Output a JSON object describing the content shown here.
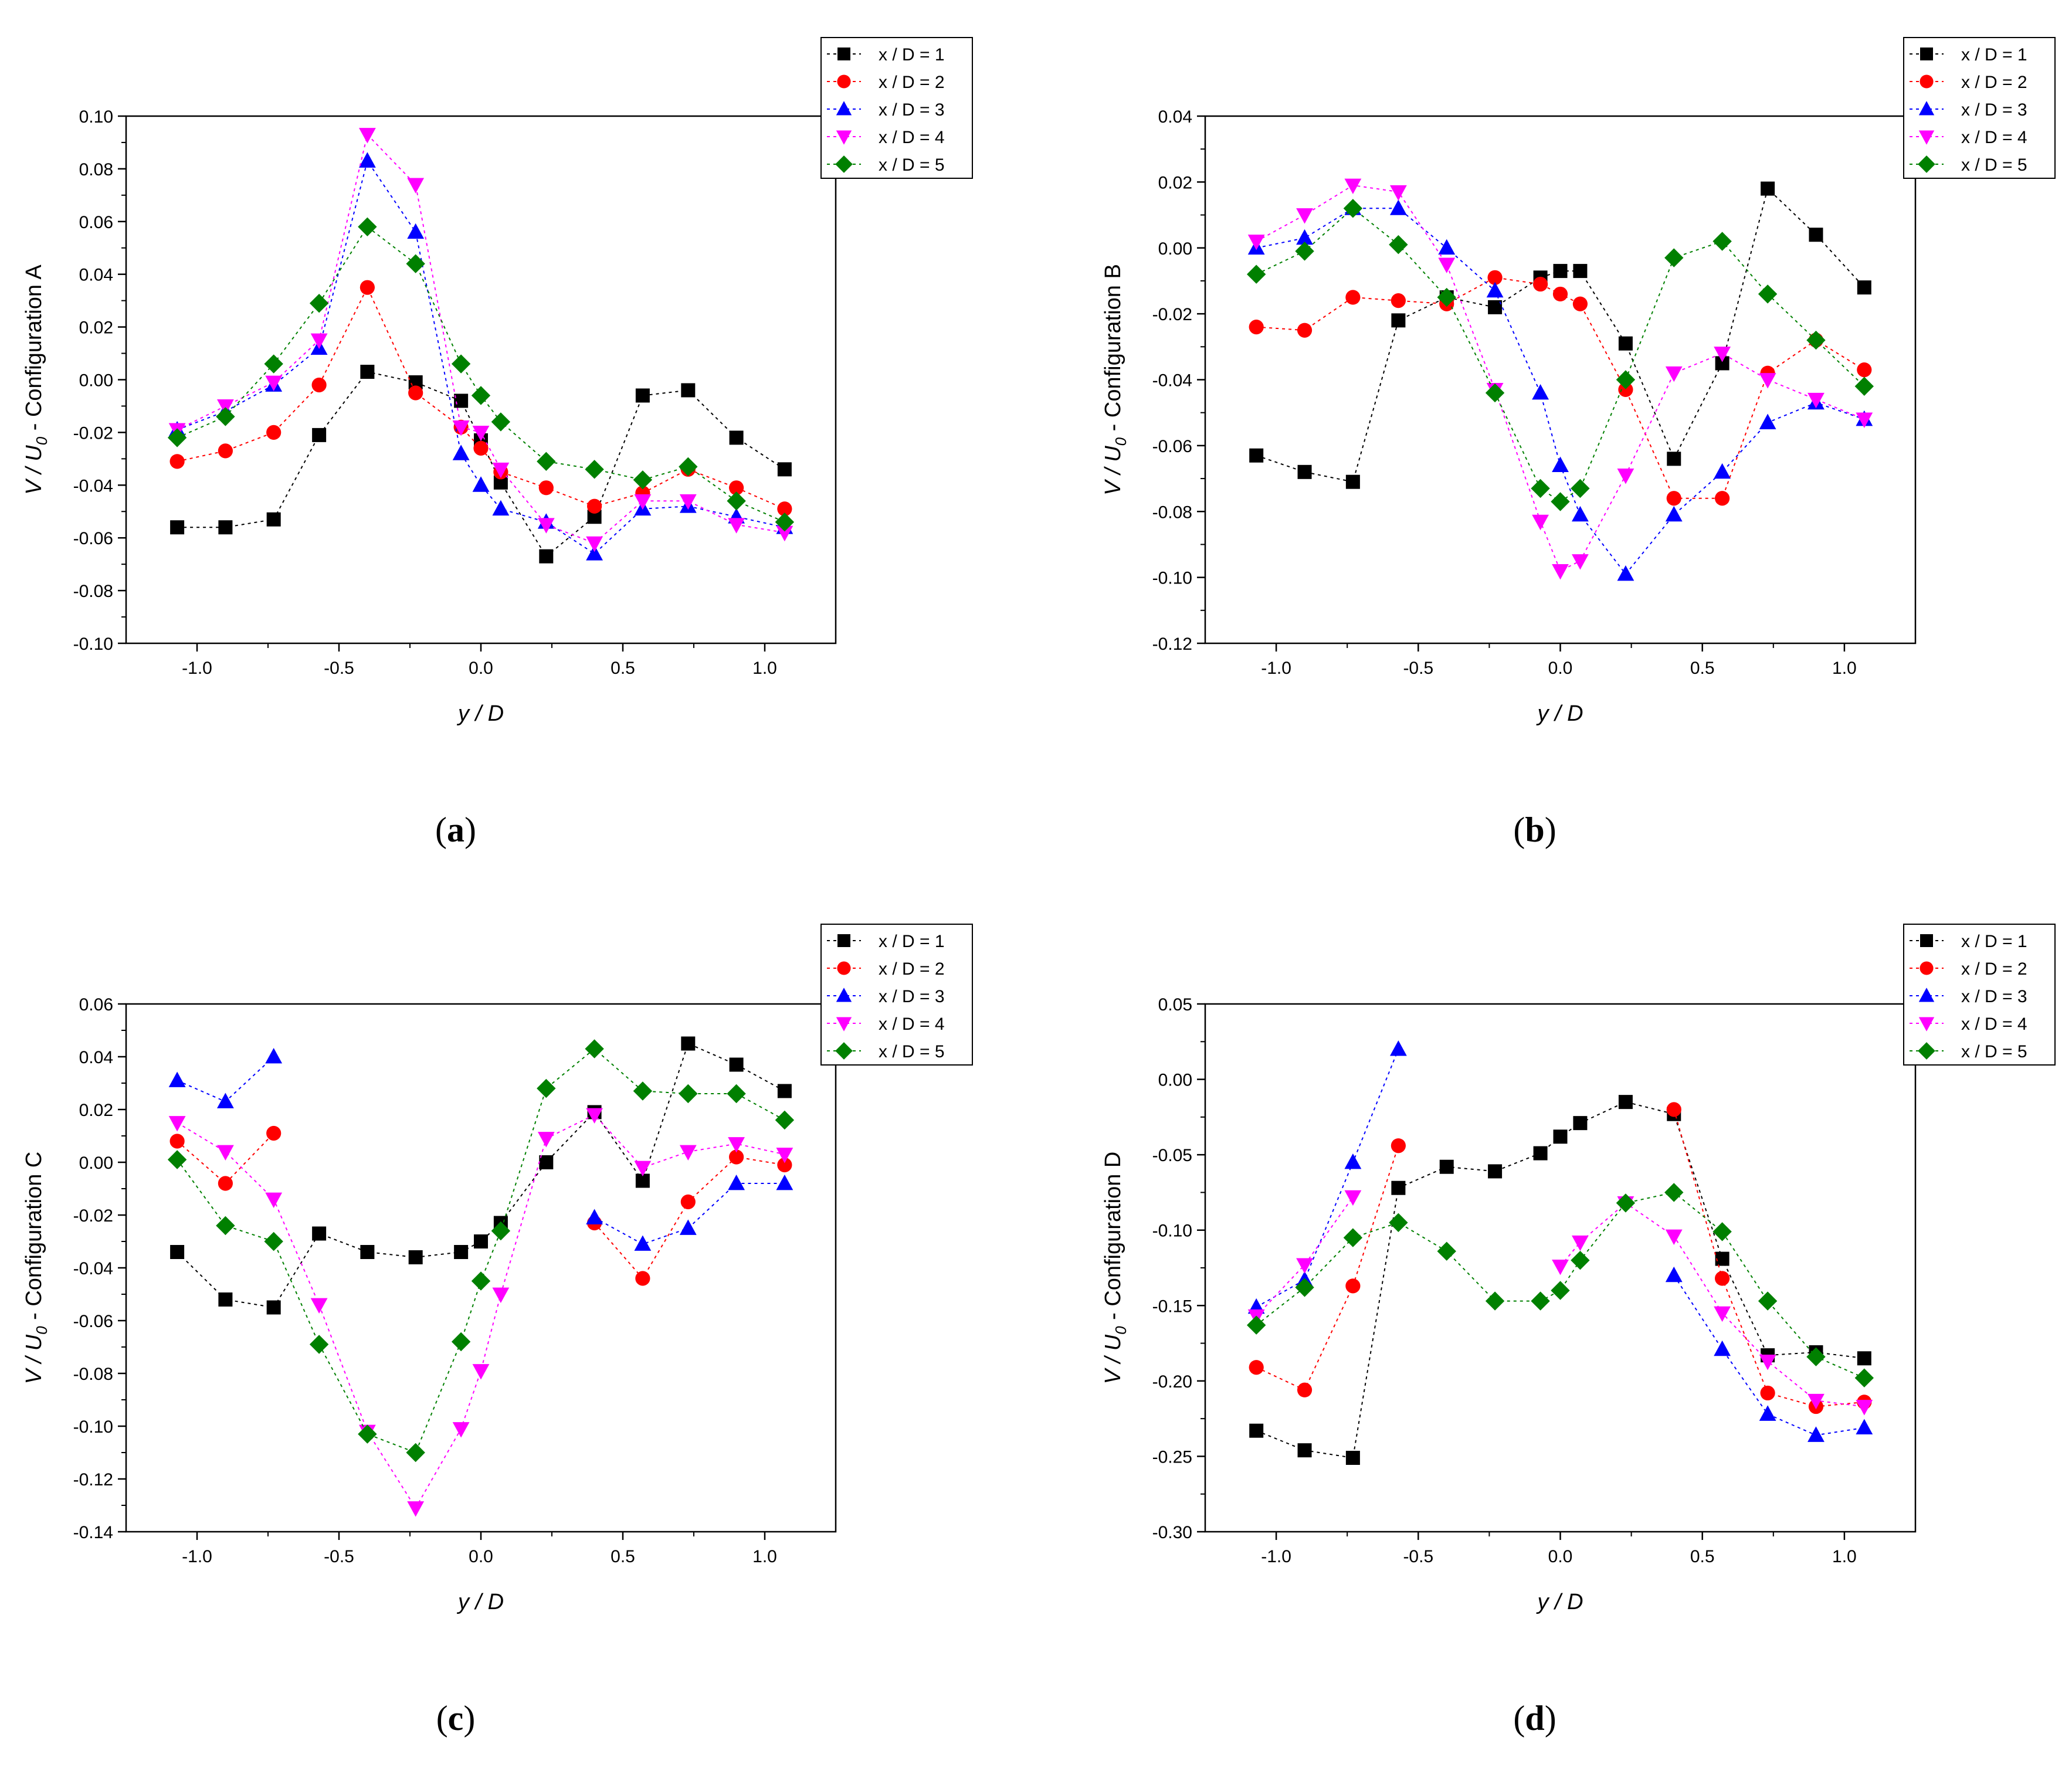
{
  "chart_data": [
    {
      "type": "scatter",
      "panel_label_letter": "a",
      "xlabel": "y / D",
      "ylabel": "V / U0 - Configuration A",
      "ylabel_main": "V / U",
      "ylabel_sub": "0",
      "ylabel_tail": " - Configuration A",
      "xlim": [
        -1.25,
        1.25
      ],
      "ylim": [
        -0.1,
        0.1
      ],
      "xticks": [
        "-1.0",
        "-0.5",
        "0.0",
        "0.5",
        "1.0"
      ],
      "yticks": [
        "-0.10",
        "-0.08",
        "-0.06",
        "-0.04",
        "-0.02",
        "0.00",
        "0.02",
        "0.04",
        "0.06",
        "0.08",
        "0.10"
      ],
      "legend_position": "top-right",
      "x": [
        -1.07,
        -0.9,
        -0.73,
        -0.57,
        -0.4,
        -0.23,
        -0.07,
        0.0,
        0.07,
        0.23,
        0.4,
        0.57,
        0.73,
        0.9,
        1.07
      ],
      "series": [
        {
          "name": "x / D = 1",
          "values": [
            -0.056,
            -0.056,
            -0.053,
            -0.021,
            0.003,
            -0.001,
            -0.008,
            -0.023,
            -0.039,
            -0.067,
            -0.052,
            -0.006,
            -0.004,
            -0.022,
            -0.034
          ]
        },
        {
          "name": "x / D = 2",
          "values": [
            -0.031,
            -0.027,
            -0.02,
            -0.002,
            0.035,
            -0.005,
            -0.018,
            -0.026,
            -0.035,
            -0.041,
            -0.048,
            -0.043,
            -0.034,
            -0.041,
            -0.049
          ]
        },
        {
          "name": "x / D = 3",
          "values": [
            -0.019,
            -0.012,
            -0.002,
            0.012,
            0.083,
            0.056,
            -0.028,
            -0.04,
            -0.049,
            -0.054,
            -0.066,
            -0.049,
            -0.048,
            -0.052,
            -0.056
          ]
        },
        {
          "name": "x / D = 4",
          "values": [
            -0.019,
            -0.01,
            -0.001,
            0.015,
            0.093,
            0.074,
            -0.018,
            -0.02,
            -0.034,
            -0.055,
            -0.062,
            -0.046,
            -0.046,
            -0.055,
            -0.058
          ]
        },
        {
          "name": "x / D = 5",
          "values": [
            -0.022,
            -0.014,
            0.006,
            0.029,
            0.058,
            0.044,
            0.006,
            -0.006,
            -0.016,
            -0.031,
            -0.034,
            -0.038,
            -0.033,
            -0.046,
            -0.054
          ]
        }
      ]
    },
    {
      "type": "scatter",
      "panel_label_letter": "b",
      "xlabel": "y / D",
      "ylabel": "V / U0 - Configuration B",
      "ylabel_main": "V / U",
      "ylabel_sub": "0",
      "ylabel_tail": " - Configuration B",
      "xlim": [
        -1.25,
        1.25
      ],
      "ylim": [
        -0.12,
        0.04
      ],
      "xticks": [
        "-1.0",
        "-0.5",
        "0.0",
        "0.5",
        "1.0"
      ],
      "yticks": [
        "-0.12",
        "-0.10",
        "-0.08",
        "-0.06",
        "-0.04",
        "-0.02",
        "0.00",
        "0.02",
        "0.04"
      ],
      "legend_position": "top-right",
      "x": [
        -1.07,
        -0.9,
        -0.73,
        -0.57,
        -0.4,
        -0.23,
        -0.07,
        0.0,
        0.07,
        0.23,
        0.4,
        0.57,
        0.73,
        0.9,
        1.07
      ],
      "series": [
        {
          "name": "x / D = 1",
          "values": [
            -0.063,
            -0.068,
            -0.071,
            -0.022,
            -0.015,
            -0.018,
            -0.009,
            -0.007,
            -0.007,
            -0.029,
            -0.064,
            -0.035,
            0.018,
            0.004,
            -0.012
          ]
        },
        {
          "name": "x / D = 2",
          "values": [
            -0.024,
            -0.025,
            -0.015,
            -0.016,
            -0.017,
            -0.009,
            -0.011,
            -0.014,
            -0.017,
            -0.043,
            -0.076,
            -0.076,
            -0.038,
            -0.028,
            -0.037
          ]
        },
        {
          "name": "x / D = 3",
          "values": [
            0.0,
            0.003,
            0.012,
            0.012,
            0.0,
            -0.013,
            -0.044,
            -0.066,
            -0.081,
            -0.099,
            -0.081,
            -0.068,
            -0.053,
            -0.047,
            -0.052
          ]
        },
        {
          "name": "x / D = 4",
          "values": [
            0.002,
            0.01,
            0.019,
            0.017,
            -0.005,
            -0.043,
            -0.083,
            -0.098,
            -0.095,
            -0.069,
            -0.038,
            -0.032,
            -0.04,
            -0.046,
            -0.052
          ]
        },
        {
          "name": "x / D = 5",
          "values": [
            -0.008,
            -0.001,
            0.012,
            0.001,
            -0.015,
            -0.044,
            -0.073,
            -0.077,
            -0.073,
            -0.04,
            -0.003,
            0.002,
            -0.014,
            -0.028,
            -0.042
          ]
        }
      ]
    },
    {
      "type": "scatter",
      "panel_label_letter": "c",
      "xlabel": "y / D",
      "ylabel": "V / U0 - Configuration C",
      "ylabel_main": "V / U",
      "ylabel_sub": "0",
      "ylabel_tail": " - Configuration C",
      "xlim": [
        -1.25,
        1.25
      ],
      "ylim": [
        -0.14,
        0.06
      ],
      "xticks": [
        "-1.0",
        "-0.5",
        "0.0",
        "0.5",
        "1.0"
      ],
      "yticks": [
        "-0.14",
        "-0.12",
        "-0.10",
        "-0.08",
        "-0.06",
        "-0.04",
        "-0.02",
        "0.00",
        "0.02",
        "0.04",
        "0.06"
      ],
      "legend_position": "top-right",
      "x": [
        -1.07,
        -0.9,
        -0.73,
        -0.57,
        -0.4,
        -0.23,
        -0.07,
        0.0,
        0.07,
        0.23,
        0.4,
        0.57,
        0.73,
        0.9,
        1.07
      ],
      "series": [
        {
          "name": "x / D = 1",
          "values": [
            -0.034,
            -0.052,
            -0.055,
            -0.027,
            -0.034,
            -0.036,
            -0.034,
            -0.03,
            -0.023,
            0.0,
            0.019,
            -0.007,
            0.045,
            0.037,
            0.027
          ]
        },
        {
          "name": "x / D = 2",
          "values": [
            0.008,
            -0.008,
            0.011,
            null,
            null,
            null,
            null,
            null,
            null,
            null,
            -0.023,
            -0.044,
            -0.015,
            0.002,
            -0.001
          ]
        },
        {
          "name": "x / D = 3",
          "values": [
            0.031,
            0.023,
            0.04,
            null,
            null,
            null,
            null,
            null,
            null,
            null,
            -0.021,
            -0.031,
            -0.025,
            -0.008,
            -0.008
          ]
        },
        {
          "name": "x / D = 4",
          "values": [
            0.015,
            0.004,
            -0.014,
            -0.054,
            -0.102,
            -0.131,
            -0.101,
            -0.079,
            -0.05,
            0.009,
            0.018,
            -0.002,
            0.004,
            0.007,
            0.003
          ]
        },
        {
          "name": "x / D = 5",
          "values": [
            0.001,
            -0.024,
            -0.03,
            -0.069,
            -0.103,
            -0.11,
            -0.068,
            -0.045,
            -0.026,
            0.028,
            0.043,
            0.027,
            0.026,
            0.026,
            0.016
          ]
        }
      ]
    },
    {
      "type": "scatter",
      "panel_label_letter": "d",
      "xlabel": "y / D",
      "ylabel": "V / U0 - Configuration D",
      "ylabel_main": "V / U",
      "ylabel_sub": "0",
      "ylabel_tail": " - Configuration D",
      "xlim": [
        -1.25,
        1.25
      ],
      "ylim": [
        -0.3,
        0.05
      ],
      "xticks": [
        "-1.0",
        "-0.5",
        "0.0",
        "0.5",
        "1.0"
      ],
      "yticks": [
        "-0.30",
        "-0.25",
        "-0.20",
        "-0.15",
        "-0.10",
        "-0.05",
        "0.00",
        "0.05"
      ],
      "legend_position": "top-right",
      "x": [
        -1.07,
        -0.9,
        -0.73,
        -0.57,
        -0.4,
        -0.23,
        -0.07,
        0.0,
        0.07,
        0.23,
        0.4,
        0.57,
        0.73,
        0.9,
        1.07
      ],
      "series": [
        {
          "name": "x / D = 1",
          "values": [
            -0.233,
            -0.246,
            -0.251,
            -0.072,
            -0.058,
            -0.061,
            -0.049,
            -0.038,
            -0.029,
            -0.015,
            -0.023,
            -0.119,
            -0.183,
            -0.181,
            -0.185
          ]
        },
        {
          "name": "x / D = 2",
          "values": [
            -0.191,
            -0.206,
            -0.137,
            -0.044,
            null,
            null,
            null,
            null,
            null,
            null,
            -0.02,
            -0.132,
            -0.208,
            -0.217,
            -0.214
          ]
        },
        {
          "name": "x / D = 3",
          "values": [
            -0.151,
            -0.133,
            -0.055,
            0.02,
            null,
            null,
            null,
            null,
            null,
            null,
            -0.13,
            -0.179,
            -0.222,
            -0.236,
            -0.231
          ]
        },
        {
          "name": "x / D = 4",
          "values": [
            -0.157,
            -0.123,
            -0.078,
            null,
            null,
            null,
            null,
            -0.124,
            -0.108,
            -0.082,
            -0.104,
            -0.155,
            -0.187,
            -0.213,
            -0.217
          ]
        },
        {
          "name": "x / D = 5",
          "values": [
            -0.163,
            -0.138,
            -0.105,
            -0.095,
            -0.114,
            -0.147,
            -0.147,
            -0.14,
            -0.12,
            -0.082,
            -0.075,
            -0.101,
            -0.147,
            -0.184,
            -0.198
          ]
        }
      ]
    }
  ],
  "series_styles": [
    {
      "color": "#000000",
      "marker": "square"
    },
    {
      "color": "#ff0000",
      "marker": "circle"
    },
    {
      "color": "#0000ff",
      "marker": "triangle-up"
    },
    {
      "color": "#ff00ff",
      "marker": "triangle-down"
    },
    {
      "color": "#008000",
      "marker": "diamond"
    }
  ]
}
